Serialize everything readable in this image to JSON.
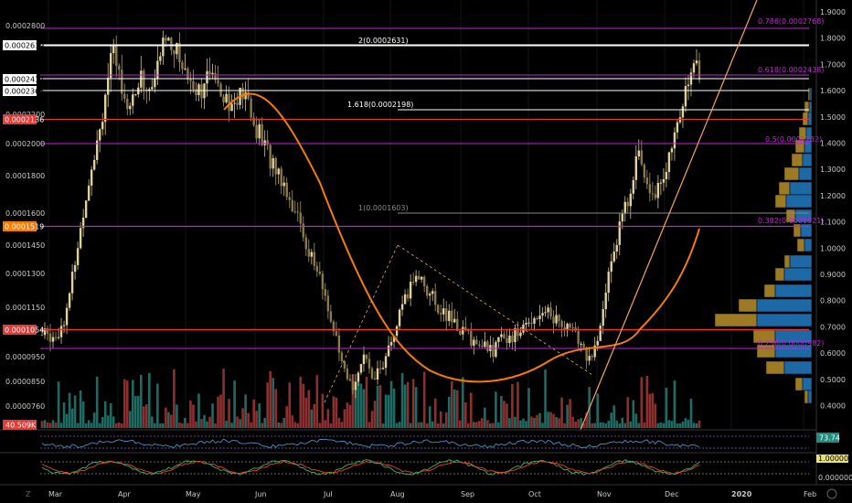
{
  "chart_data": {
    "type": "candlestick",
    "timeframe": "daily",
    "x_labels": [
      "Mar",
      "Apr",
      "May",
      "Jun",
      "Jul",
      "Aug",
      "Sep",
      "Oct",
      "Nov",
      "Dec",
      "2020",
      "Feb"
    ],
    "left_price_ticks": [
      "0.0002800",
      "0.0002600",
      "0.0002400",
      "0.0002200",
      "0.0002000",
      "0.0001800",
      "0.0001600",
      "0.0001450",
      "0.0001300",
      "0.0001150",
      "0.0000950",
      "0.0000850",
      "0.0000760"
    ],
    "left_price_tags": [
      {
        "text": "0.0002639",
        "bg": "#ffffff",
        "fg": "#000000"
      },
      {
        "text": "0.0002417",
        "bg": "#ffffff",
        "fg": "#000000"
      },
      {
        "text": "0.0002365",
        "bg": "#ffffff",
        "fg": "#000000"
      },
      {
        "text": "0.0002136",
        "bg": "#e53935",
        "fg": "#ffffff"
      },
      {
        "text": "0.0001519",
        "bg": "#f57c00",
        "fg": "#ffffff"
      },
      {
        "text": "0.0001054",
        "bg": "#e53935",
        "fg": "#ffffff"
      }
    ],
    "right_axis_ticks": [
      "1.9000",
      "1.8000",
      "1.7000",
      "1.6000",
      "1.5000",
      "1.4000",
      "1.3000",
      "1.2000",
      "1.1000",
      "1.0000",
      "0.9000",
      "0.8000",
      "0.7000",
      "0.6000",
      "0.5000",
      "0.4000"
    ],
    "fib_levels": [
      {
        "text": "2(0.0002631)",
        "color": "#ffffff"
      },
      {
        "text": "1.618(0.0002198)",
        "color": "#ffffff"
      },
      {
        "text": "1(0.0001603)",
        "color": "#888888"
      },
      {
        "text": "0.786(0.0002768)",
        "color": "#c026d3"
      },
      {
        "text": "0.618(0.0002438)",
        "color": "#c026d3"
      },
      {
        "text": "0.5(0.0002282)",
        "color": "#c026d3"
      },
      {
        "text": "0.382(0.0001521)",
        "color": "#c026d3"
      },
      {
        "text": "0.236(0.0000982)",
        "color": "#c026d3"
      }
    ],
    "close_series": [
      0.0001035,
      0.000104,
      0.000103,
      0.000105,
      0.00011,
      0.000118,
      0.000135,
      0.00015,
      0.000168,
      0.000185,
      0.0002,
      0.000215,
      0.000238,
      0.000255,
      0.000245,
      0.000232,
      0.00022,
      0.000228,
      0.00024,
      0.000235,
      0.00023,
      0.000242,
      0.00026,
      0.00027,
      0.000262,
      0.000255,
      0.000248,
      0.00024,
      0.000235,
      0.000232,
      0.000236,
      0.00024,
      0.000245,
      0.000232,
      0.000228,
      0.00022,
      0.000225,
      0.00023,
      0.000222,
      0.00021,
      0.000205,
      0.000198,
      0.00019,
      0.000185,
      0.00018,
      0.000172,
      0.000165,
      0.000158,
      0.00015,
      0.000142,
      0.000135,
      0.000128,
      0.00012,
      0.000112,
      0.000102,
      9.2e-05,
      8.5e-05,
      8.2e-05,
      8.8e-05,
      9.4e-05,
      9e-05,
      8.7e-05,
      8.9e-05,
      9.2e-05,
      9.8e-05,
      0.000105,
      0.000112,
      0.000118,
      0.000125,
      0.00013,
      0.000127,
      0.000122,
      0.000118,
      0.000115,
      0.000112,
      0.00011,
      0.000108,
      0.000106,
      0.000104,
      0.000102,
      0.0001,
      9.8e-05,
      9.9e-05,
      9.7e-05,
      0.0001,
      0.000102,
      0.000104,
      0.000103,
      0.000105,
      0.000107,
      0.00011,
      0.000112,
      0.000114,
      0.000113,
      0.000111,
      0.000109,
      0.000108,
      0.000106,
      0.000104,
      0.0001,
      9.6e-05,
      9.4e-05,
      9.8e-05,
      0.000108,
      0.000125,
      0.00014,
      0.00015,
      0.000158,
      0.00017,
      0.000185,
      0.000192,
      0.00018,
      0.000175,
      0.000172,
      0.000178,
      0.000185,
      0.000195,
      0.00021,
      0.000225,
      0.000242,
      0.000248,
      0.000243
    ],
    "rsi_label": "73.74",
    "volume_label": "40.509K",
    "stoch_labels": [
      "1.0000000",
      "0.0000000"
    ]
  }
}
